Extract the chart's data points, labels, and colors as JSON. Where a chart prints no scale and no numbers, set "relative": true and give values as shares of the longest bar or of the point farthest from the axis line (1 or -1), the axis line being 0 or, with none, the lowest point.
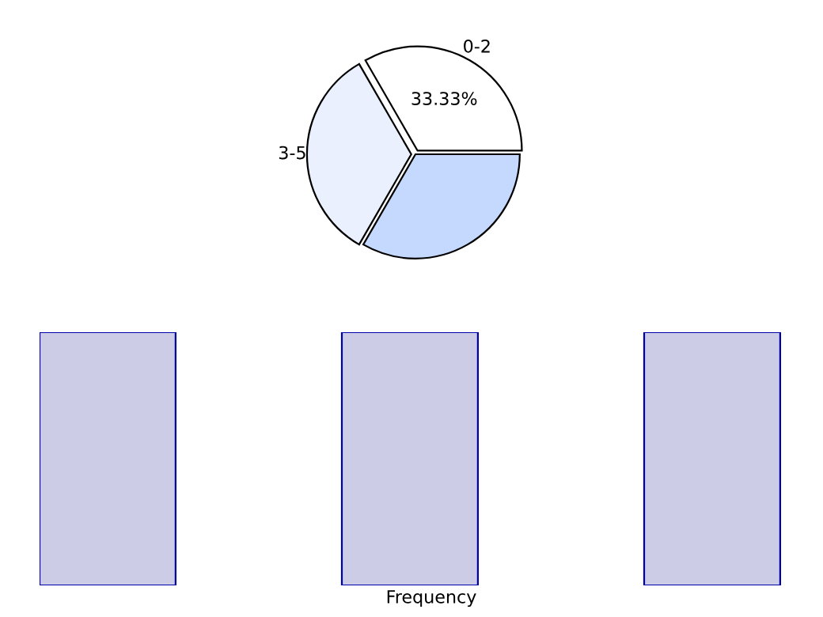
{
  "chart_data": [
    {
      "type": "pie",
      "categories": [
        "0-2",
        "3-5",
        null
      ],
      "values": [
        33.33,
        33.33,
        33.33
      ],
      "colors": [
        "#ffffff",
        "#eaf0fe",
        "#c5d8fe"
      ],
      "value_labels": [
        "33.33%",
        null,
        null
      ]
    },
    {
      "type": "bar",
      "relative": true,
      "categories": [
        null,
        null,
        null
      ],
      "values": [
        1,
        1,
        1
      ],
      "color": "#cccce6",
      "xlabel": "Frequency"
    }
  ]
}
